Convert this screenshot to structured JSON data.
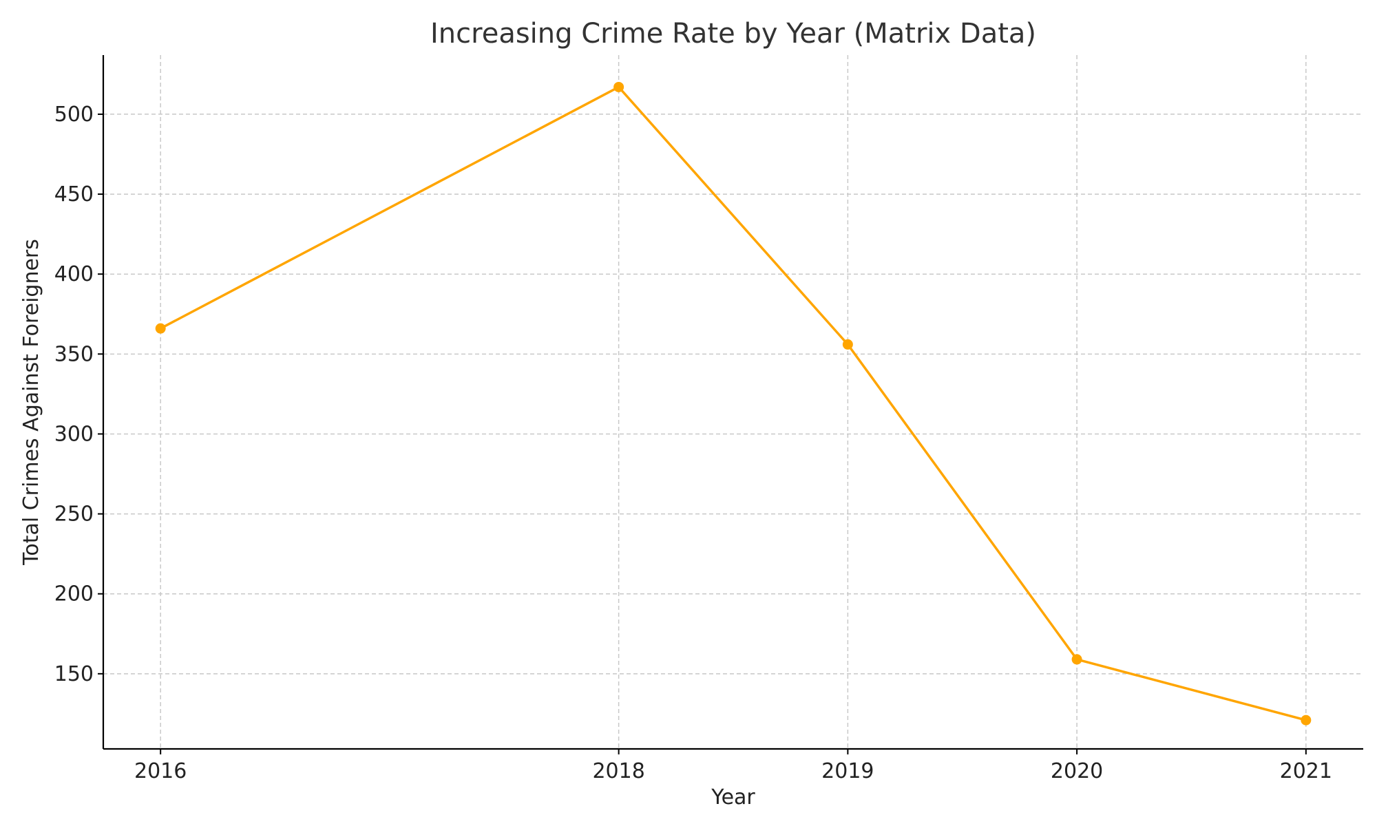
{
  "chart_data": {
    "type": "line",
    "title": "Increasing Crime Rate by Year (Matrix Data)",
    "xlabel": "Year",
    "ylabel": "Total Crimes Against Foreigners",
    "x": [
      2016,
      2018,
      2019,
      2020,
      2021
    ],
    "xticks": [
      "2016",
      "2018",
      "2019",
      "2020",
      "2021"
    ],
    "xlim": [
      2015.75,
      2021.25
    ],
    "ylim": [
      103,
      537
    ],
    "yticks": [
      150,
      200,
      250,
      300,
      350,
      400,
      450,
      500
    ],
    "series": [
      {
        "values": [
          366,
          517,
          356,
          159,
          121
        ],
        "color": "#FFA500"
      }
    ],
    "grid": true,
    "legend": false
  }
}
